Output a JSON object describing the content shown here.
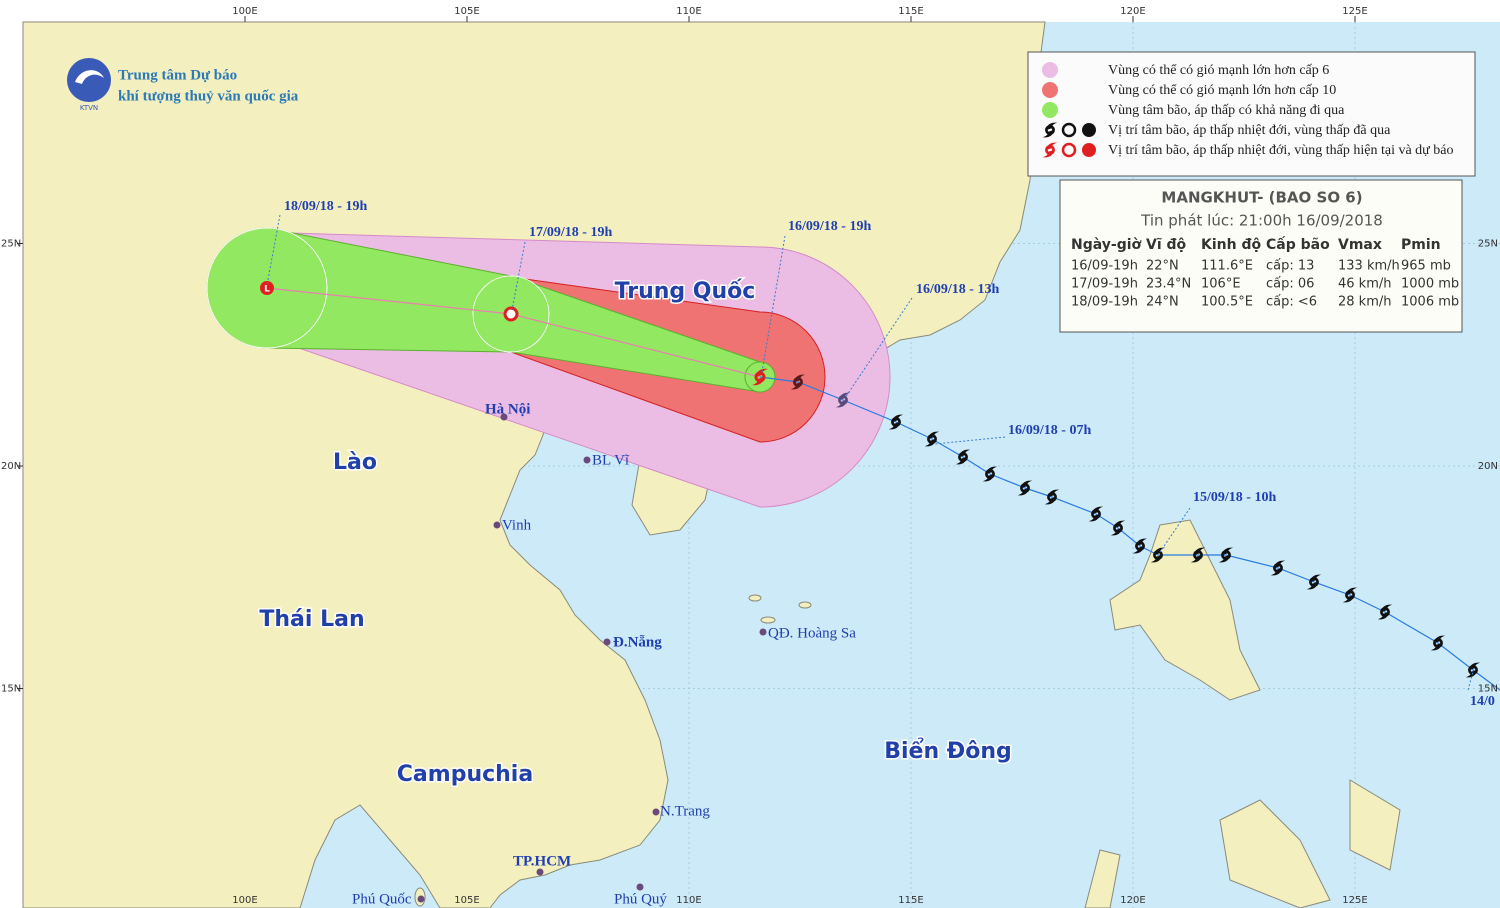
{
  "header": {
    "agency_line1": "Trung tâm Dự báo",
    "agency_line2": "khí tượng thuỷ văn quốc gia",
    "logo_text": "KTVN"
  },
  "legend": {
    "items": [
      "Vùng có thể có gió mạnh lớn hơn cấp 6",
      "Vùng có thể có gió mạnh lớn hơn cấp 10",
      "Vùng tâm bão, áp thấp có khả năng đi qua",
      "Vị trí tâm bão, áp thấp nhiệt đới, vùng thấp đã qua",
      "Vị trí tâm bão, áp thấp nhiệt đới, vùng thấp hiện tại và dự báo"
    ]
  },
  "info_box": {
    "title": "MANGKHUT- (BAO SO 6)",
    "issued": "Tin phát lúc: 21:00h 16/09/2018",
    "columns": [
      "Ngày-giờ",
      "Vĩ độ",
      "Kinh độ",
      "Cấp bão",
      "Vmax",
      "Pmin"
    ],
    "rows": [
      [
        "16/09-19h",
        "22°N",
        "111.6°E",
        "cấp: 13",
        "133 km/h",
        "965 mb"
      ],
      [
        "17/09-19h",
        "23.4°N",
        "106°E",
        "cấp: 06",
        "46 km/h",
        "1000 mb"
      ],
      [
        "18/09-19h",
        "24°N",
        "100.5°E",
        "cấp: <6",
        "28 km/h",
        "1006 mb"
      ]
    ]
  },
  "map": {
    "lon_ticks": [
      {
        "value": 100,
        "label": "100E"
      },
      {
        "value": 105,
        "label": "105E"
      },
      {
        "value": 110,
        "label": "110E"
      },
      {
        "value": 115,
        "label": "115E"
      },
      {
        "value": 120,
        "label": "120E"
      },
      {
        "value": 125,
        "label": "125E"
      }
    ],
    "lat_ticks": [
      {
        "value": 25,
        "label": "25N"
      },
      {
        "value": 20,
        "label": "20N"
      },
      {
        "value": 15,
        "label": "15N"
      }
    ],
    "regions": [
      "Trung Quốc",
      "Lào",
      "Thái Lan",
      "Campuchia",
      "Biển Đông"
    ],
    "places": [
      "Hà Nội",
      "BL Vĩ",
      "Vinh",
      "Đ.Nẵng",
      "QĐ. Hoàng Sa",
      "N.Trang",
      "TP.HCM",
      "Phú Quốc",
      "Phú Quý"
    ],
    "track_labels": [
      "18/09/18 - 19h",
      "17/09/18 - 19h",
      "16/09/18 - 19h",
      "16/09/18 - 13h",
      "16/09/18 - 07h",
      "15/09/18 - 10h",
      "14/0"
    ]
  }
}
